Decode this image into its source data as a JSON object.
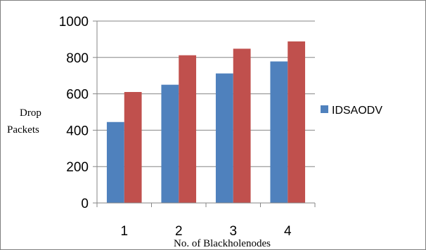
{
  "chart_data": {
    "type": "bar",
    "categories": [
      "1",
      "2",
      "3",
      "4"
    ],
    "series": [
      {
        "name": "IDSAODV",
        "color": "#4f81bd",
        "values": [
          445,
          650,
          712,
          778
        ]
      },
      {
        "color": "#c0504d",
        "values": [
          610,
          812,
          848,
          888
        ]
      }
    ],
    "ylim": [
      0,
      1000
    ],
    "yticks": [
      0,
      200,
      400,
      600,
      800,
      1000
    ],
    "xlabel": "No. of Blackholenodes",
    "ylabel": [
      "Drop",
      "Packets"
    ],
    "grid": true,
    "legend_placement": "right"
  }
}
